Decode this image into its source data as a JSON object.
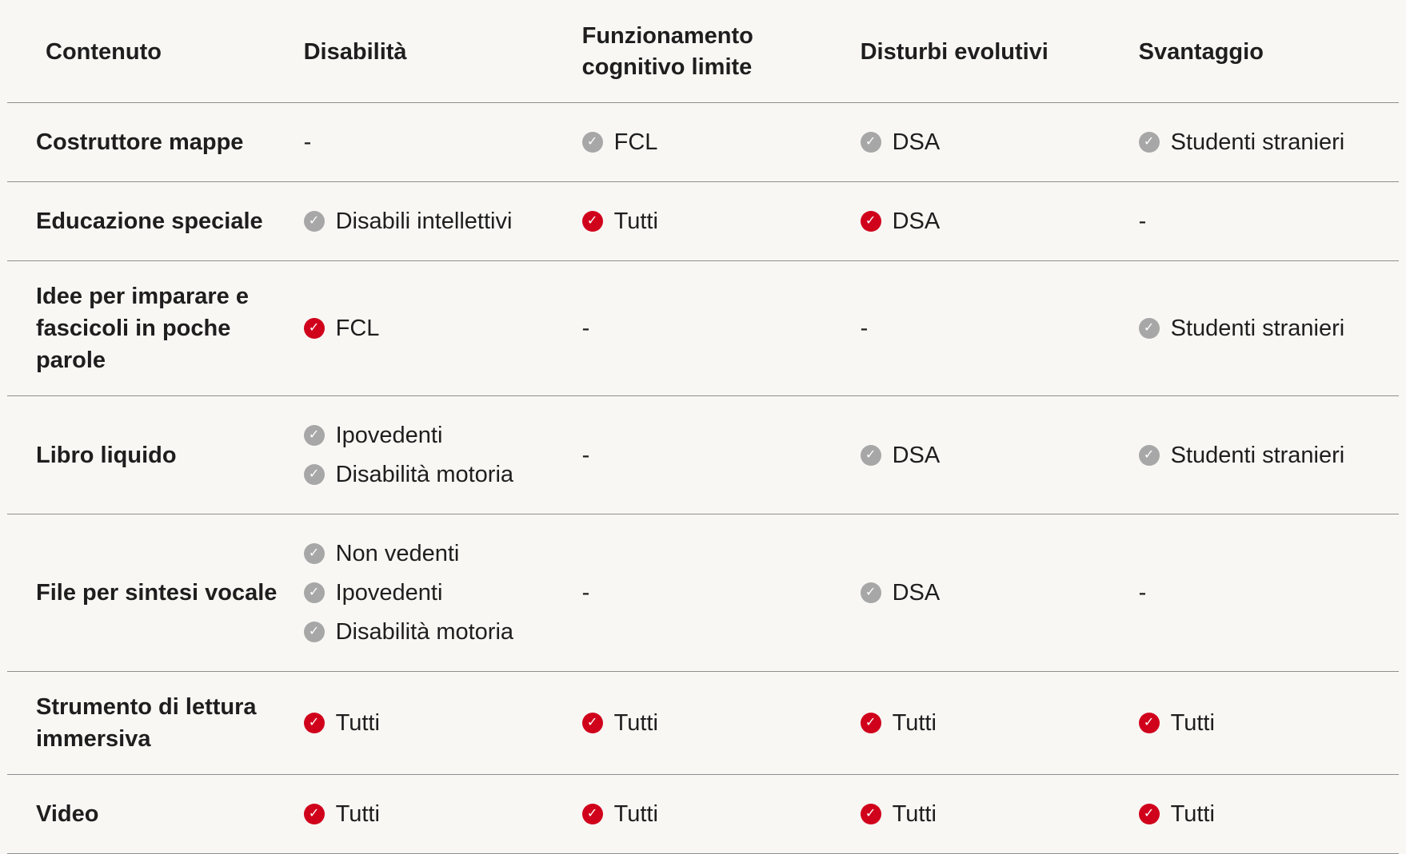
{
  "colors": {
    "check_red": "#d0021b",
    "check_gray": "#a7a7a7",
    "background": "#f8f7f4",
    "divider": "#8f8f8f",
    "text": "#1e1e1e"
  },
  "icons": {
    "check_glyph": "✓"
  },
  "table": {
    "headers": [
      {
        "id": "contenuto",
        "label": "Contenuto"
      },
      {
        "id": "disabilita",
        "label": "Disabilità"
      },
      {
        "id": "funzionamento-cognitivo-limite",
        "label": "Funzionamento cognitivo limite"
      },
      {
        "id": "disturbi-evolutivi",
        "label": "Disturbi evolutivi"
      },
      {
        "id": "svantaggio",
        "label": "Svantaggio"
      }
    ],
    "rows": [
      {
        "label": "Costruttore mappe",
        "cells": [
          [
            {
              "check": null,
              "text": "-"
            }
          ],
          [
            {
              "check": "gray",
              "text": "FCL"
            }
          ],
          [
            {
              "check": "gray",
              "text": "DSA"
            }
          ],
          [
            {
              "check": "gray",
              "text": "Studenti stranieri"
            }
          ]
        ]
      },
      {
        "label": "Educazione speciale",
        "cells": [
          [
            {
              "check": "gray",
              "text": "Disabili intellettivi"
            }
          ],
          [
            {
              "check": "red",
              "text": "Tutti"
            }
          ],
          [
            {
              "check": "red",
              "text": "DSA"
            }
          ],
          [
            {
              "check": null,
              "text": "-"
            }
          ]
        ]
      },
      {
        "label": "Idee per imparare e fascicoli in poche parole",
        "cells": [
          [
            {
              "check": "red",
              "text": "FCL"
            }
          ],
          [
            {
              "check": null,
              "text": "-"
            }
          ],
          [
            {
              "check": null,
              "text": "-"
            }
          ],
          [
            {
              "check": "gray",
              "text": "Studenti stranieri"
            }
          ]
        ]
      },
      {
        "label": "Libro liquido",
        "cells": [
          [
            {
              "check": "gray",
              "text": "Ipovedenti"
            },
            {
              "check": "gray",
              "text": "Disabilità motoria"
            }
          ],
          [
            {
              "check": null,
              "text": "-"
            }
          ],
          [
            {
              "check": "gray",
              "text": "DSA"
            }
          ],
          [
            {
              "check": "gray",
              "text": "Studenti stranieri"
            }
          ]
        ]
      },
      {
        "label": "File per sintesi vocale",
        "cells": [
          [
            {
              "check": "gray",
              "text": "Non vedenti"
            },
            {
              "check": "gray",
              "text": "Ipovedenti"
            },
            {
              "check": "gray",
              "text": "Disabilità motoria"
            }
          ],
          [
            {
              "check": null,
              "text": "-"
            }
          ],
          [
            {
              "check": "gray",
              "text": "DSA"
            }
          ],
          [
            {
              "check": null,
              "text": "-"
            }
          ]
        ]
      },
      {
        "label": "Strumento di lettura immersiva",
        "cells": [
          [
            {
              "check": "red",
              "text": "Tutti"
            }
          ],
          [
            {
              "check": "red",
              "text": "Tutti"
            }
          ],
          [
            {
              "check": "red",
              "text": "Tutti"
            }
          ],
          [
            {
              "check": "red",
              "text": "Tutti"
            }
          ]
        ]
      },
      {
        "label": "Video",
        "cells": [
          [
            {
              "check": "red",
              "text": "Tutti"
            }
          ],
          [
            {
              "check": "red",
              "text": "Tutti"
            }
          ],
          [
            {
              "check": "red",
              "text": "Tutti"
            }
          ],
          [
            {
              "check": "red",
              "text": "Tutti"
            }
          ]
        ]
      }
    ]
  }
}
